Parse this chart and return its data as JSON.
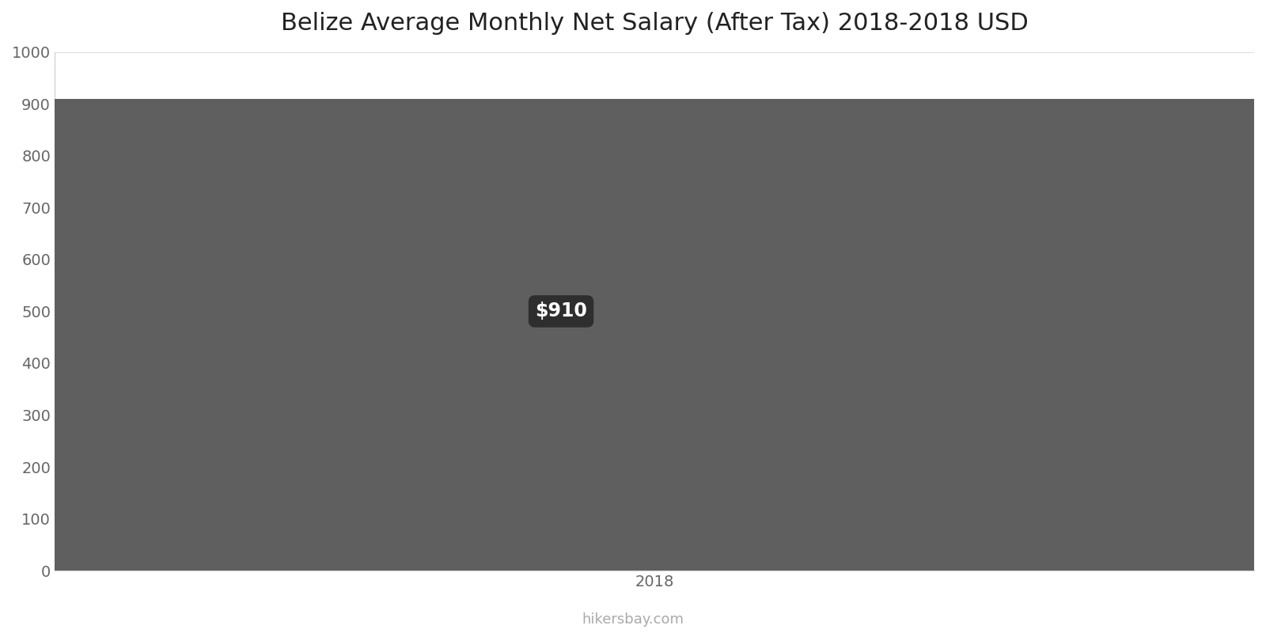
{
  "title": "Belize Average Monthly Net Salary (After Tax) 2018-2018 USD",
  "x_values": [
    2018
  ],
  "y_values": [
    910
  ],
  "bar_color": "#5f5f5f",
  "background_color": "#ffffff",
  "ylim": [
    0,
    1000
  ],
  "yticks": [
    0,
    100,
    200,
    300,
    400,
    500,
    600,
    700,
    800,
    900,
    1000
  ],
  "xlabel": "2018",
  "annotation_text": "$910",
  "annotation_bg": "#2e2e2e",
  "annotation_fg": "#ffffff",
  "footer_text": "hikersbay.com",
  "title_fontsize": 22,
  "tick_fontsize": 14,
  "footer_fontsize": 13,
  "bar_width": 0.9,
  "xlim": [
    2017.55,
    2018.45
  ]
}
